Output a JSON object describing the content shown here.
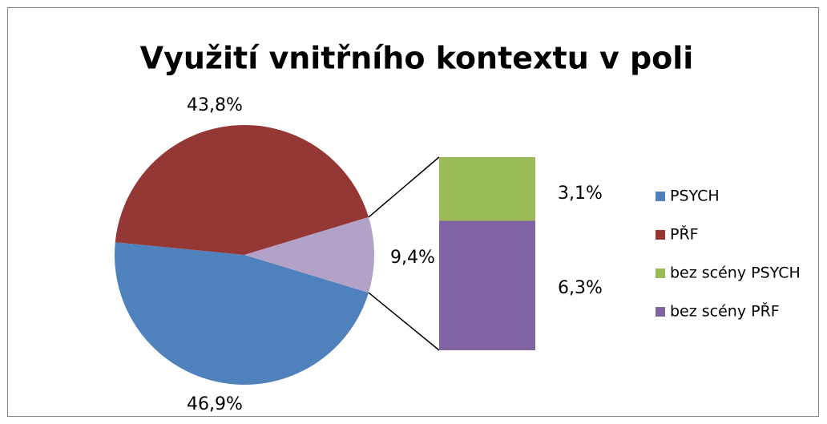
{
  "chart_data": {
    "type": "pie_of_bar",
    "title": "Využití vnitřního kontextu v poli",
    "categories": [
      "PSYCH",
      "PŘF",
      "bez scény PSYCH",
      "bez scény PŘF"
    ],
    "values": [
      46.9,
      43.8,
      3.1,
      6.3
    ],
    "value_labels": [
      "46,9%",
      "43,8%",
      "3,1%",
      "6,3%"
    ],
    "colors": [
      "#4f81bd",
      "#953735",
      "#9bbb59",
      "#8064a2"
    ],
    "other": {
      "value": 9.4,
      "label": "9,4%",
      "color": "#b3a2c7"
    }
  }
}
